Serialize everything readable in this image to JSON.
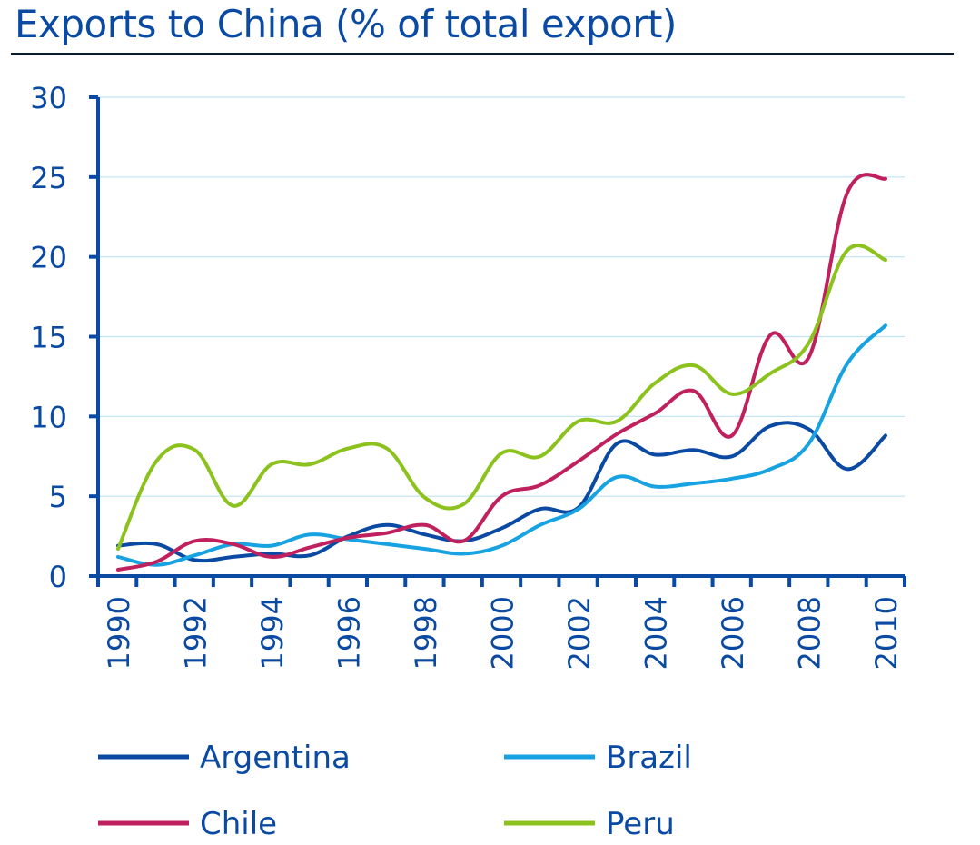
{
  "title": "Exports to China (% of total export)",
  "chart_data": {
    "type": "line",
    "title": "Exports to China (% of total export)",
    "xlabel": "",
    "ylabel": "",
    "ylim": [
      0,
      30
    ],
    "yticks": [
      "0",
      "5",
      "10",
      "15",
      "20",
      "25",
      "30"
    ],
    "x": [
      1990,
      1991,
      1992,
      1993,
      1994,
      1995,
      1996,
      1997,
      1998,
      1999,
      2000,
      2001,
      2002,
      2003,
      2004,
      2005,
      2006,
      2007,
      2008,
      2009,
      2010
    ],
    "xticks": [
      "1990",
      "1992",
      "1994",
      "1996",
      "1998",
      "2000",
      "2002",
      "2004",
      "2006",
      "2008",
      "2010"
    ],
    "grid": "horizontal",
    "legend_position": "bottom",
    "series": [
      {
        "name": "Argentina",
        "color": "#0b4aa2",
        "values": [
          1.9,
          2.0,
          1.0,
          1.2,
          1.4,
          1.3,
          2.5,
          3.2,
          2.6,
          2.2,
          3.0,
          4.2,
          4.3,
          8.3,
          7.6,
          7.9,
          7.5,
          9.4,
          9.2,
          6.7,
          8.8
        ]
      },
      {
        "name": "Brazil",
        "color": "#17a2e2",
        "values": [
          1.2,
          0.7,
          1.3,
          2.0,
          1.9,
          2.6,
          2.3,
          2.0,
          1.7,
          1.4,
          1.9,
          3.2,
          4.2,
          6.2,
          5.6,
          5.8,
          6.1,
          6.7,
          8.3,
          13.3,
          15.7
        ]
      },
      {
        "name": "Chile",
        "color": "#c0215e",
        "values": [
          0.4,
          0.9,
          2.2,
          2.0,
          1.2,
          1.8,
          2.4,
          2.7,
          3.2,
          2.2,
          5.0,
          5.7,
          7.2,
          8.9,
          10.2,
          11.6,
          8.8,
          15.1,
          13.7,
          24.0,
          24.9
        ]
      },
      {
        "name": "Peru",
        "color": "#8cc21d",
        "values": [
          1.7,
          7.2,
          7.9,
          4.4,
          7.0,
          7.0,
          8.0,
          8.0,
          4.9,
          4.5,
          7.7,
          7.5,
          9.7,
          9.7,
          12.1,
          13.2,
          11.4,
          12.7,
          14.6,
          20.4,
          19.8
        ]
      }
    ]
  }
}
